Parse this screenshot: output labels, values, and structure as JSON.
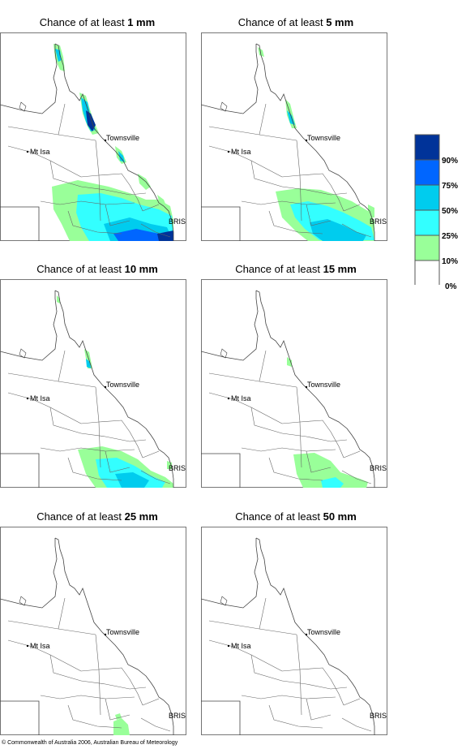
{
  "panels": [
    {
      "prefix": "Chance of at least",
      "amount": "1 mm"
    },
    {
      "prefix": "Chance of at least",
      "amount": "5 mm"
    },
    {
      "prefix": "Chance of at least",
      "amount": "10 mm"
    },
    {
      "prefix": "Chance of at least",
      "amount": "15 mm"
    },
    {
      "prefix": "Chance of at least",
      "amount": "25 mm"
    },
    {
      "prefix": "Chance of at least",
      "amount": "50 mm"
    }
  ],
  "map_labels": {
    "townsville": "Townsville",
    "mt_isa": "Mt Isa",
    "brisbane": "BRIS"
  },
  "legend": {
    "labels": [
      "90%",
      "75%",
      "50%",
      "25%",
      "10%",
      "0%"
    ],
    "colors": [
      "#003399",
      "#0066ff",
      "#00ccee",
      "#33ffff",
      "#99ff99",
      "#ffffff"
    ]
  },
  "copyright": "© Commonwealth of Australia 2006, Australian Bureau of Meteorology"
}
